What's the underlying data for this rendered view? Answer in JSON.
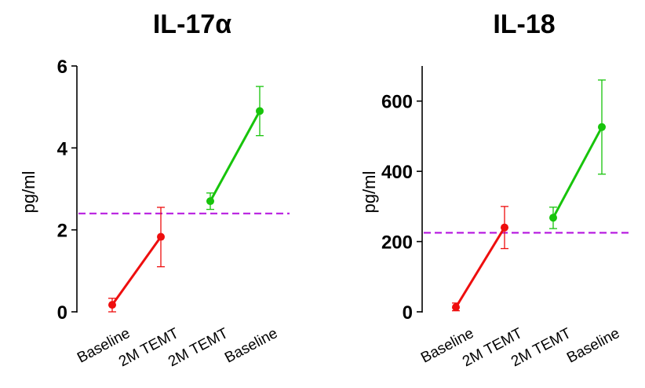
{
  "chart_data": [
    {
      "type": "line",
      "title": "IL-17α",
      "ylabel": "pg/ml",
      "ylim": [
        0,
        6
      ],
      "yticks": [
        0,
        2,
        4,
        6
      ],
      "categories": [
        "Baseline",
        "2M TEMT",
        "2M TEMT",
        "Baseline"
      ],
      "reference_line": {
        "y": 2.4,
        "color": "#b81fe0",
        "style": "dashed"
      },
      "series": [
        {
          "color": "#ee0e0e",
          "points": [
            {
              "x": 0,
              "y": 0.17,
              "err_low": 0.0,
              "err_high": 0.33
            },
            {
              "x": 1,
              "y": 1.83,
              "err_low": 1.1,
              "err_high": 2.55
            }
          ]
        },
        {
          "color": "#17c40b",
          "points": [
            {
              "x": 2,
              "y": 2.7,
              "err_low": 2.5,
              "err_high": 2.9
            },
            {
              "x": 3,
              "y": 4.9,
              "err_low": 4.3,
              "err_high": 5.5
            }
          ]
        }
      ]
    },
    {
      "type": "line",
      "title": "IL-18",
      "ylabel": "pg/ml",
      "ylim": [
        0,
        700
      ],
      "yticks": [
        0,
        200,
        400,
        600
      ],
      "categories": [
        "Baseline",
        "2M TEMT",
        "2M TEMT",
        "Baseline"
      ],
      "reference_line": {
        "y": 225,
        "color": "#b81fe0",
        "style": "dashed"
      },
      "series": [
        {
          "color": "#ee0e0e",
          "points": [
            {
              "x": 0,
              "y": 13,
              "err_low": 3,
              "err_high": 25
            },
            {
              "x": 1,
              "y": 240,
              "err_low": 180,
              "err_high": 300
            }
          ]
        },
        {
          "color": "#17c40b",
          "points": [
            {
              "x": 2,
              "y": 268,
              "err_low": 237,
              "err_high": 298
            },
            {
              "x": 3,
              "y": 526,
              "err_low": 392,
              "err_high": 660
            }
          ]
        }
      ]
    }
  ]
}
